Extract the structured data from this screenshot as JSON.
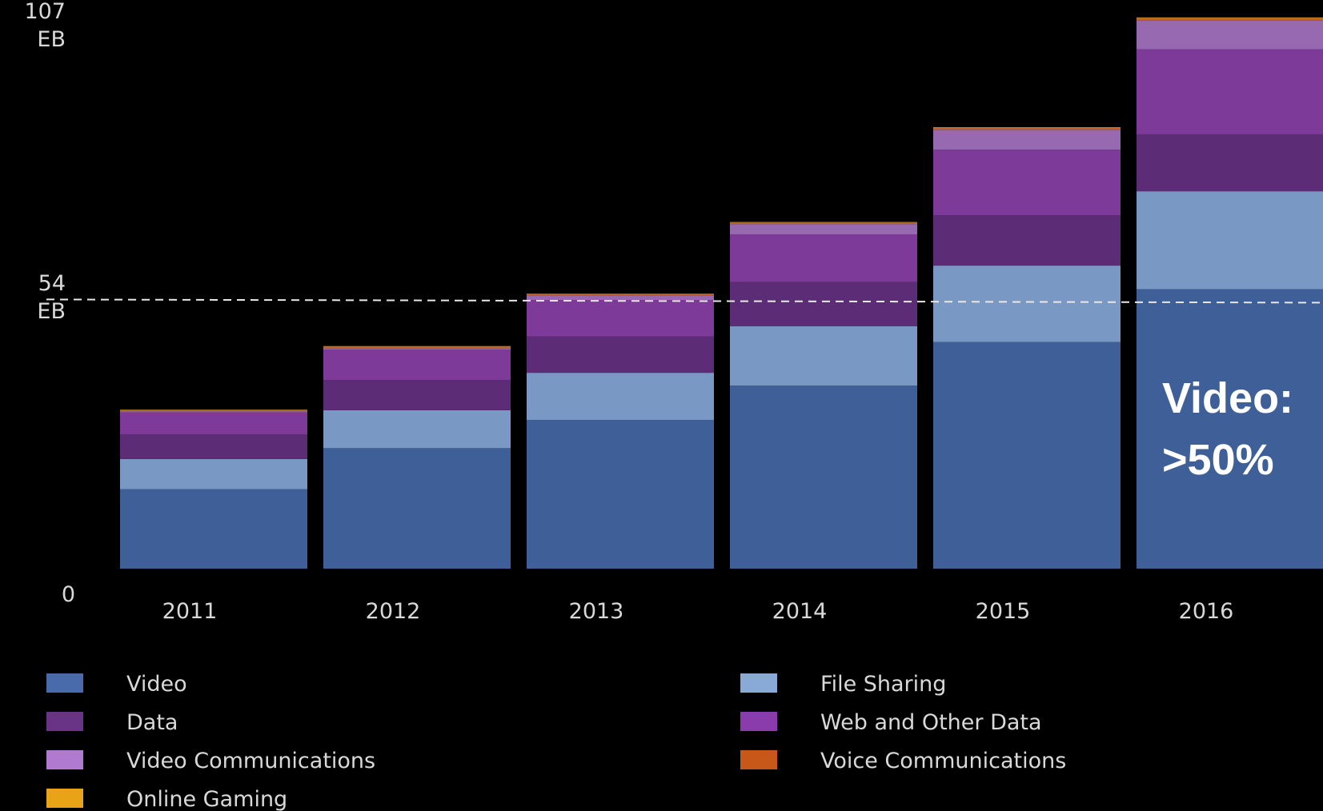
{
  "chart_data": {
    "type": "bar",
    "stacked": true,
    "title": "",
    "xlabel": "",
    "ylabel": "",
    "categories": [
      "2011",
      "2012",
      "2013",
      "2014",
      "2015",
      "2016"
    ],
    "ylim": [
      0,
      107
    ],
    "y_ticks": [
      {
        "value": 107,
        "line1": "107",
        "line2": "EB"
      },
      {
        "value": 54,
        "line1": "54",
        "line2": "EB"
      },
      {
        "value": 0,
        "line1": "0",
        "line2": ""
      }
    ],
    "reference_line": {
      "value": 52.5,
      "style": "dashed"
    },
    "series": [
      {
        "name": "Video",
        "color": "#3f5f98",
        "values": [
          15.5,
          23.5,
          29.0,
          35.7,
          44.2,
          54.5
        ]
      },
      {
        "name": "File Sharing",
        "color": "#7a98c4",
        "values": [
          5.9,
          7.4,
          9.2,
          11.6,
          14.9,
          19.1
        ]
      },
      {
        "name": "Data",
        "color": "#5d2c77",
        "values": [
          4.8,
          5.9,
          7.1,
          8.6,
          9.8,
          11.1
        ]
      },
      {
        "name": "Web and Other Data",
        "color": "#7e3a99",
        "values": [
          4.3,
          5.9,
          7.1,
          9.3,
          12.8,
          16.6
        ]
      },
      {
        "name": "Video Communications",
        "color": "#9769b0",
        "values": [
          0.2,
          0.3,
          0.8,
          2.0,
          3.9,
          5.6
        ]
      },
      {
        "name": "Voice Communications",
        "color": "#c0602a",
        "values": [
          0.2,
          0.3,
          0.3,
          0.3,
          0.4,
          0.5
        ]
      },
      {
        "name": "Online Gaming",
        "color": "#e0a21e",
        "values": [
          0.1,
          0.1,
          0.1,
          0.1,
          0.1,
          0.1
        ]
      }
    ],
    "legend": {
      "placement": "bottom",
      "items": [
        {
          "name": "Video",
          "color": "#4a6bab"
        },
        {
          "name": "File Sharing",
          "color": "#89a9d6"
        },
        {
          "name": "Data",
          "color": "#6a3486"
        },
        {
          "name": "Web and Other Data",
          "color": "#8a3cad"
        },
        {
          "name": "Video Communications",
          "color": "#b07ad0"
        },
        {
          "name": "Voice Communications",
          "color": "#c8571a"
        },
        {
          "name": "Online Gaming",
          "color": "#e8a416"
        }
      ]
    },
    "annotation": {
      "line1": "Video:",
      "line2": ">50%"
    },
    "grid": false
  }
}
